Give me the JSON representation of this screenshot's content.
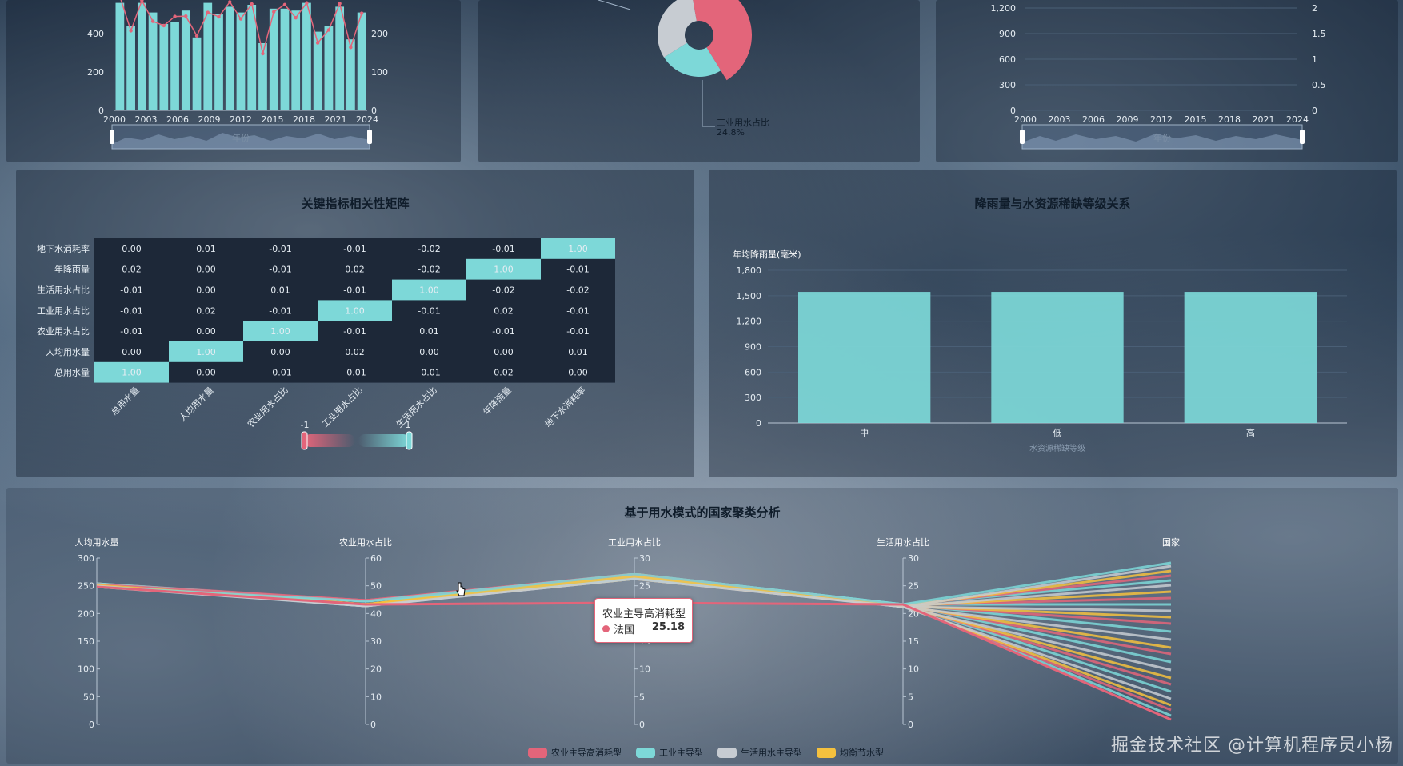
{
  "colors": {
    "teal": "#7dd8d8",
    "pink": "#e3657a",
    "gray": "#c7ccd2",
    "yellow": "#f5c13e",
    "grid": "#4a5f76"
  },
  "top_panels": {
    "left": {
      "chart_data": {
        "type": "bar",
        "xlabel": "年份",
        "x_ticks": [
          "2000",
          "2003",
          "2006",
          "2009",
          "2012",
          "2015",
          "2018",
          "2021",
          "2024"
        ],
        "y_ticks_left": [
          "0",
          "200",
          "400"
        ],
        "y_ticks_right": [
          "0",
          "100",
          "200"
        ],
        "values": [
          560,
          440,
          560,
          510,
          450,
          460,
          520,
          380,
          560,
          500,
          540,
          510,
          550,
          350,
          530,
          530,
          520,
          560,
          410,
          440,
          540,
          370,
          510
        ]
      }
    },
    "middle": {
      "chart_data": {
        "type": "pie",
        "slices": [
          {
            "name": "工业用水占比",
            "value": 24.8,
            "color": "#7dd8d8"
          },
          {
            "name": "",
            "value": 44.0,
            "color": "#e3657a"
          },
          {
            "name": "",
            "value": 31.2,
            "color": "#c7ccd2"
          }
        ],
        "label_name": "工业用水占比",
        "label_value": "24.8%"
      }
    },
    "right": {
      "chart_data": {
        "type": "line",
        "xlabel": "年份",
        "x_ticks": [
          "2000",
          "2003",
          "2006",
          "2009",
          "2012",
          "2015",
          "2018",
          "2021",
          "2024"
        ],
        "y_ticks_left": [
          "0",
          "300",
          "600",
          "900",
          "1,200"
        ],
        "y_ticks_right": [
          "0",
          "0.5",
          "1",
          "1.5",
          "2"
        ]
      }
    }
  },
  "heatmap": {
    "title": "关键指标相关性矩阵",
    "chart_data": {
      "type": "heatmap",
      "rows": [
        "地下水消耗率",
        "年降雨量",
        "生活用水占比",
        "工业用水占比",
        "农业用水占比",
        "人均用水量",
        "总用水量"
      ],
      "cols": [
        "总用水量",
        "人均用水量",
        "农业用水占比",
        "工业用水占比",
        "生活用水占比",
        "年降雨量",
        "地下水消耗率"
      ],
      "values": [
        [
          "0.00",
          "0.01",
          "-0.01",
          "-0.01",
          "-0.02",
          "-0.01",
          "1.00"
        ],
        [
          "0.02",
          "0.00",
          "-0.01",
          "0.02",
          "-0.02",
          "1.00",
          "-0.01"
        ],
        [
          "-0.01",
          "0.00",
          "0.01",
          "-0.01",
          "1.00",
          "-0.02",
          "-0.02"
        ],
        [
          "-0.01",
          "0.02",
          "-0.01",
          "1.00",
          "-0.01",
          "0.02",
          "-0.01"
        ],
        [
          "-0.01",
          "0.00",
          "1.00",
          "-0.01",
          "0.01",
          "-0.01",
          "-0.01"
        ],
        [
          "0.00",
          "1.00",
          "0.00",
          "0.02",
          "0.00",
          "0.00",
          "0.01"
        ],
        [
          "1.00",
          "0.00",
          "-0.01",
          "-0.01",
          "-0.01",
          "0.02",
          "0.00"
        ]
      ],
      "visualmap_min": "-1",
      "visualmap_max": "1"
    }
  },
  "rainfall": {
    "title": "降雨量与水资源稀缺等级关系",
    "chart_data": {
      "type": "bar",
      "ylabel": "年均降雨量(毫米)",
      "xlabel": "水资源稀缺等级",
      "categories": [
        "中",
        "低",
        "高"
      ],
      "values": [
        1545,
        1545,
        1545
      ],
      "y_ticks": [
        "0",
        "300",
        "600",
        "900",
        "1,200",
        "1,500",
        "1,800"
      ],
      "ylim": [
        0,
        1800
      ]
    }
  },
  "parallel": {
    "title": "基于用水模式的国家聚类分析",
    "axes": [
      {
        "name": "人均用水量",
        "ticks": [
          "0",
          "50",
          "100",
          "150",
          "200",
          "250",
          "300"
        ]
      },
      {
        "name": "农业用水占比",
        "ticks": [
          "0",
          "10",
          "20",
          "30",
          "40",
          "50",
          "60"
        ]
      },
      {
        "name": "工业用水占比",
        "ticks": [
          "0",
          "5",
          "10",
          "15",
          "20",
          "25",
          "30"
        ]
      },
      {
        "name": "生活用水占比",
        "ticks": [
          "0",
          "5",
          "10",
          "15",
          "20",
          "25",
          "30"
        ]
      },
      {
        "name": "国家",
        "ticks": []
      }
    ],
    "legend": [
      {
        "name": "农业主导高消耗型",
        "color": "#e3657a"
      },
      {
        "name": "工业主导型",
        "color": "#7dd8d8"
      },
      {
        "name": "生活用水主导型",
        "color": "#c7ccd2"
      },
      {
        "name": "均衡节水型",
        "color": "#f5c13e"
      }
    ],
    "tooltip": {
      "title": "农业主导高消耗型",
      "name": "法国",
      "value": "25.18"
    }
  },
  "watermark": "掘金技术社区 @计算机程序员小杨"
}
